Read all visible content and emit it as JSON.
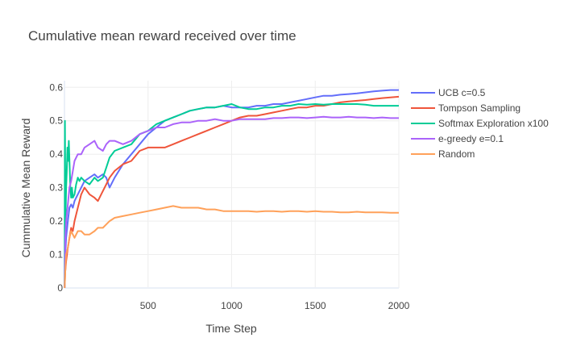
{
  "chart_data": {
    "type": "line",
    "title": "Cumulative mean reward received over time",
    "xlabel": "Time Step",
    "ylabel": "Cummulative Mean Reward",
    "xlim": [
      0,
      2000
    ],
    "ylim": [
      0,
      0.62
    ],
    "xticks": [
      500,
      1000,
      1500,
      2000
    ],
    "xtick_labels": [
      "500",
      "1000",
      "1500",
      "2000"
    ],
    "yticks": [
      0,
      0.1,
      0.2,
      0.3,
      0.4,
      0.5,
      0.6
    ],
    "ytick_labels": [
      "0",
      "0.1",
      "0.2",
      "0.3",
      "0.4",
      "0.5",
      "0.6"
    ],
    "grid": true,
    "legend_position": "right",
    "series": [
      {
        "name": "UCB c=0.5",
        "color": "#636efa",
        "x": [
          1,
          5,
          10,
          20,
          30,
          40,
          50,
          60,
          80,
          100,
          120,
          150,
          180,
          200,
          230,
          250,
          270,
          300,
          350,
          400,
          450,
          500,
          550,
          600,
          650,
          700,
          750,
          800,
          850,
          900,
          950,
          1000,
          1050,
          1100,
          1150,
          1200,
          1250,
          1300,
          1350,
          1400,
          1450,
          1500,
          1550,
          1600,
          1650,
          1700,
          1750,
          1800,
          1850,
          1900,
          1950,
          2000
        ],
        "y": [
          0.0,
          0.1,
          0.15,
          0.2,
          0.24,
          0.25,
          0.24,
          0.26,
          0.28,
          0.3,
          0.32,
          0.33,
          0.34,
          0.33,
          0.34,
          0.33,
          0.3,
          0.33,
          0.37,
          0.4,
          0.43,
          0.46,
          0.48,
          0.5,
          0.51,
          0.52,
          0.53,
          0.535,
          0.54,
          0.54,
          0.545,
          0.54,
          0.54,
          0.54,
          0.545,
          0.545,
          0.55,
          0.55,
          0.555,
          0.56,
          0.565,
          0.57,
          0.575,
          0.575,
          0.578,
          0.58,
          0.582,
          0.585,
          0.588,
          0.59,
          0.592,
          0.592
        ]
      },
      {
        "name": "Tompson Sampling",
        "color": "#ef553b",
        "x": [
          1,
          5,
          10,
          20,
          30,
          40,
          50,
          60,
          80,
          100,
          120,
          150,
          180,
          200,
          230,
          250,
          270,
          300,
          350,
          400,
          450,
          500,
          550,
          600,
          650,
          700,
          750,
          800,
          850,
          900,
          950,
          1000,
          1050,
          1100,
          1150,
          1200,
          1250,
          1300,
          1350,
          1400,
          1450,
          1500,
          1550,
          1600,
          1650,
          1700,
          1750,
          1800,
          1850,
          1900,
          1950,
          2000
        ],
        "y": [
          0.0,
          0.05,
          0.08,
          0.12,
          0.15,
          0.18,
          0.17,
          0.2,
          0.24,
          0.28,
          0.3,
          0.28,
          0.27,
          0.26,
          0.29,
          0.31,
          0.33,
          0.35,
          0.37,
          0.38,
          0.41,
          0.42,
          0.42,
          0.42,
          0.43,
          0.44,
          0.45,
          0.46,
          0.47,
          0.48,
          0.49,
          0.5,
          0.51,
          0.515,
          0.515,
          0.52,
          0.525,
          0.53,
          0.535,
          0.54,
          0.54,
          0.545,
          0.545,
          0.55,
          0.555,
          0.558,
          0.56,
          0.562,
          0.565,
          0.568,
          0.57,
          0.572
        ]
      },
      {
        "name": "Softmax Exploration x100",
        "color": "#00cc96",
        "x": [
          1,
          3,
          6,
          10,
          14,
          18,
          22,
          26,
          30,
          35,
          40,
          45,
          50,
          60,
          70,
          80,
          90,
          100,
          120,
          150,
          180,
          200,
          230,
          250,
          270,
          300,
          350,
          400,
          450,
          500,
          550,
          600,
          650,
          700,
          750,
          800,
          850,
          900,
          950,
          1000,
          1050,
          1100,
          1150,
          1200,
          1250,
          1300,
          1350,
          1400,
          1450,
          1500,
          1550,
          1600,
          1650,
          1700,
          1750,
          1800,
          1850,
          1900,
          1950,
          2000
        ],
        "y": [
          0.0,
          0.5,
          0.2,
          0.3,
          0.35,
          0.42,
          0.38,
          0.44,
          0.38,
          0.3,
          0.27,
          0.3,
          0.27,
          0.28,
          0.31,
          0.33,
          0.32,
          0.33,
          0.32,
          0.31,
          0.33,
          0.32,
          0.33,
          0.36,
          0.39,
          0.41,
          0.42,
          0.43,
          0.46,
          0.47,
          0.49,
          0.5,
          0.51,
          0.52,
          0.53,
          0.535,
          0.54,
          0.54,
          0.545,
          0.55,
          0.54,
          0.535,
          0.535,
          0.54,
          0.54,
          0.545,
          0.545,
          0.55,
          0.548,
          0.55,
          0.548,
          0.55,
          0.55,
          0.55,
          0.55,
          0.548,
          0.545,
          0.545,
          0.545,
          0.545
        ]
      },
      {
        "name": "e-greedy e=0.1",
        "color": "#ab63fa",
        "x": [
          1,
          5,
          10,
          20,
          30,
          40,
          50,
          60,
          80,
          100,
          120,
          150,
          180,
          200,
          230,
          250,
          270,
          300,
          350,
          400,
          450,
          500,
          550,
          600,
          650,
          700,
          750,
          800,
          850,
          900,
          950,
          1000,
          1050,
          1100,
          1150,
          1200,
          1250,
          1300,
          1350,
          1400,
          1450,
          1500,
          1550,
          1600,
          1650,
          1700,
          1750,
          1800,
          1850,
          1900,
          1950,
          2000
        ],
        "y": [
          0.0,
          0.15,
          0.2,
          0.25,
          0.3,
          0.32,
          0.35,
          0.38,
          0.4,
          0.4,
          0.42,
          0.43,
          0.44,
          0.42,
          0.41,
          0.43,
          0.44,
          0.44,
          0.43,
          0.44,
          0.46,
          0.47,
          0.48,
          0.48,
          0.49,
          0.495,
          0.495,
          0.5,
          0.5,
          0.505,
          0.5,
          0.5,
          0.505,
          0.505,
          0.505,
          0.505,
          0.508,
          0.508,
          0.51,
          0.51,
          0.508,
          0.51,
          0.512,
          0.51,
          0.51,
          0.512,
          0.51,
          0.51,
          0.508,
          0.51,
          0.508,
          0.508
        ]
      },
      {
        "name": "Random",
        "color": "#ffa15a",
        "x": [
          1,
          5,
          10,
          20,
          30,
          40,
          50,
          60,
          80,
          100,
          120,
          150,
          180,
          200,
          230,
          250,
          270,
          300,
          350,
          400,
          450,
          500,
          550,
          600,
          650,
          700,
          750,
          800,
          850,
          900,
          950,
          1000,
          1050,
          1100,
          1150,
          1200,
          1250,
          1300,
          1350,
          1400,
          1450,
          1500,
          1550,
          1600,
          1650,
          1700,
          1750,
          1800,
          1850,
          1900,
          1950,
          2000
        ],
        "y": [
          0.0,
          0.05,
          0.1,
          0.12,
          0.15,
          0.17,
          0.16,
          0.15,
          0.17,
          0.17,
          0.16,
          0.16,
          0.17,
          0.18,
          0.18,
          0.19,
          0.2,
          0.21,
          0.215,
          0.22,
          0.225,
          0.23,
          0.235,
          0.24,
          0.245,
          0.24,
          0.24,
          0.24,
          0.235,
          0.235,
          0.23,
          0.23,
          0.23,
          0.23,
          0.228,
          0.23,
          0.23,
          0.228,
          0.23,
          0.23,
          0.228,
          0.23,
          0.228,
          0.228,
          0.226,
          0.226,
          0.228,
          0.226,
          0.226,
          0.226,
          0.225,
          0.225
        ]
      }
    ]
  }
}
